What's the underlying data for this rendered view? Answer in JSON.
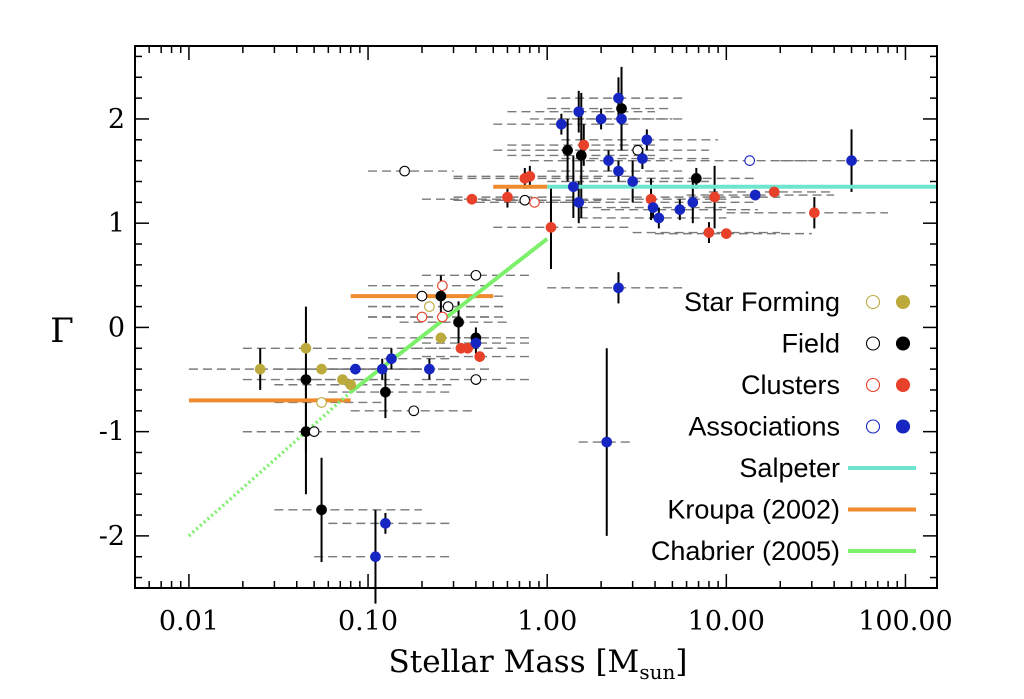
{
  "chart_data": {
    "type": "scatter",
    "xscale": "log",
    "xlim": [
      0.005,
      150
    ],
    "ylim": [
      -2.5,
      2.7
    ],
    "xlabel_main": "Stellar Mass [M",
    "xlabel_sub": "sun",
    "xlabel_end": "]",
    "ylabel": "Γ",
    "xticks": [
      {
        "value": 0.01,
        "label": "0.01"
      },
      {
        "value": 0.1,
        "label": "0.10"
      },
      {
        "value": 1,
        "label": "1.00"
      },
      {
        "value": 10,
        "label": "10.00"
      },
      {
        "value": 100,
        "label": "100.00"
      }
    ],
    "yticks": [
      {
        "value": -2,
        "label": "-2"
      },
      {
        "value": -1,
        "label": "-1"
      },
      {
        "value": 0,
        "label": "0"
      },
      {
        "value": 1,
        "label": "1"
      },
      {
        "value": 2,
        "label": "2"
      }
    ],
    "grid": false,
    "legend_position": "bottom-right",
    "colors": {
      "star_forming": "#bcab3c",
      "field": "#000000",
      "clusters": "#e8412a",
      "associations": "#1726c2",
      "salpeter": "#6ee6cf",
      "kroupa": "#f08a2e",
      "chabrier": "#7cf06a",
      "range": "#7a7a7a",
      "errorbar": "#000000"
    },
    "series": [
      {
        "name": "Star Forming",
        "key": "star_forming",
        "points": [
          {
            "x": 0.025,
            "y": -0.4,
            "xr": [
              0.01,
              0.2
            ],
            "yerr": 0.2,
            "filled": true
          },
          {
            "x": 0.045,
            "y": -0.2,
            "xr": [
              0.02,
              0.3
            ],
            "yerr": 0,
            "filled": true
          },
          {
            "x": 0.055,
            "y": -0.4,
            "xr": [
              0.03,
              0.2
            ],
            "yerr": 0,
            "filled": true
          },
          {
            "x": 0.072,
            "y": -0.5,
            "xr": [
              0.04,
              0.15
            ],
            "yerr": 0,
            "filled": true
          },
          {
            "x": 0.08,
            "y": -0.55,
            "xr": [
              0.03,
              0.3
            ],
            "yerr": 0,
            "filled": true
          },
          {
            "x": 0.255,
            "y": -0.1,
            "xr": [
              0.1,
              0.5
            ],
            "yerr": 0,
            "filled": true
          },
          {
            "x": 0.22,
            "y": 0.2,
            "xr": [
              0.1,
              0.6
            ],
            "yerr": 0,
            "filled": false
          },
          {
            "x": 0.055,
            "y": -0.72,
            "xr": [
              0.03,
              0.12
            ],
            "yerr": 0,
            "filled": false
          }
        ]
      },
      {
        "name": "Field",
        "key": "field",
        "points": [
          {
            "x": 0.045,
            "y": -0.5,
            "xr": [
              0.02,
              0.12
            ],
            "yerr": 0.7,
            "filled": true
          },
          {
            "x": 0.045,
            "y": -1.0,
            "xr": [
              0.02,
              0.12
            ],
            "yerr": 0.6,
            "filled": true
          },
          {
            "x": 0.055,
            "y": -1.75,
            "xr": [
              0.03,
              0.2
            ],
            "yerr": 0.5,
            "filled": true
          },
          {
            "x": 0.125,
            "y": -0.62,
            "xr": [
              0.06,
              0.3
            ],
            "yerr": 0.25,
            "filled": true
          },
          {
            "x": 0.255,
            "y": 0.3,
            "xr": [
              0.1,
              0.5
            ],
            "yerr": 0.2,
            "filled": true
          },
          {
            "x": 0.32,
            "y": 0.05,
            "xr": [
              0.15,
              0.6
            ],
            "yerr": 0.2,
            "filled": true
          },
          {
            "x": 0.4,
            "y": -0.1,
            "xr": [
              0.2,
              0.8
            ],
            "yerr": 0.1,
            "filled": true
          },
          {
            "x": 1.3,
            "y": 1.7,
            "xr": [
              0.5,
              3
            ],
            "yerr": 0.3,
            "filled": true
          },
          {
            "x": 1.55,
            "y": 1.65,
            "xr": [
              0.6,
              4
            ],
            "yerr": 0.6,
            "filled": true
          },
          {
            "x": 2.6,
            "y": 2.1,
            "xr": [
              1,
              5
            ],
            "yerr": 0.4,
            "filled": true
          },
          {
            "x": 6.8,
            "y": 1.43,
            "xr": [
              3,
              15
            ],
            "yerr": 0.1,
            "filled": true
          },
          {
            "x": 0.16,
            "y": 1.5,
            "xr": [
              0.1,
              0.3
            ],
            "yerr": 0,
            "filled": false
          },
          {
            "x": 0.4,
            "y": 0.5,
            "xr": [
              0.2,
              0.8
            ],
            "yerr": 0,
            "filled": false
          },
          {
            "x": 0.4,
            "y": -0.5,
            "xr": [
              0.2,
              0.8
            ],
            "yerr": 0,
            "filled": false
          },
          {
            "x": 0.05,
            "y": -1.0,
            "xr": [
              0.02,
              0.2
            ],
            "yerr": 0,
            "filled": false
          },
          {
            "x": 0.18,
            "y": -0.8,
            "xr": [
              0.08,
              0.4
            ],
            "yerr": 0,
            "filled": false
          },
          {
            "x": 0.2,
            "y": 0.3,
            "xr": [
              0.1,
              0.6
            ],
            "yerr": 0,
            "filled": false
          },
          {
            "x": 0.28,
            "y": 0.2,
            "xr": [
              0.1,
              0.6
            ],
            "yerr": 0,
            "filled": false
          },
          {
            "x": 0.75,
            "y": 1.22,
            "xr": [
              0.3,
              2
            ],
            "yerr": 0,
            "filled": false
          },
          {
            "x": 3.2,
            "y": 1.7,
            "xr": [
              1,
              8
            ],
            "yerr": 0,
            "filled": false
          }
        ]
      },
      {
        "name": "Clusters",
        "key": "clusters",
        "points": [
          {
            "x": 0.38,
            "y": 1.23,
            "xr": [
              0.2,
              0.8
            ],
            "yerr": 0,
            "filled": true
          },
          {
            "x": 0.6,
            "y": 1.25,
            "xr": [
              0.3,
              1.5
            ],
            "yerr": 0.1,
            "filled": true
          },
          {
            "x": 0.75,
            "y": 1.43,
            "xr": [
              0.3,
              2
            ],
            "yerr": 0.1,
            "filled": true
          },
          {
            "x": 0.8,
            "y": 1.45,
            "xr": [
              0.3,
              3
            ],
            "yerr": 0.1,
            "filled": true
          },
          {
            "x": 1.05,
            "y": 0.96,
            "xr": [
              0.5,
              3
            ],
            "yerr": 0.4,
            "filled": true
          },
          {
            "x": 1.6,
            "y": 1.75,
            "xr": [
              0.6,
              4
            ],
            "yerr": 0.2,
            "filled": true
          },
          {
            "x": 3.8,
            "y": 1.23,
            "xr": [
              1.5,
              10
            ],
            "yerr": 0.2,
            "filled": true
          },
          {
            "x": 8.0,
            "y": 0.91,
            "xr": [
              3,
              20
            ],
            "yerr": 0.1,
            "filled": true
          },
          {
            "x": 8.6,
            "y": 1.25,
            "xr": [
              3,
              20
            ],
            "yerr": 0.3,
            "filled": true
          },
          {
            "x": 10.0,
            "y": 0.9,
            "xr": [
              4,
              30
            ],
            "yerr": 0,
            "filled": true
          },
          {
            "x": 18.5,
            "y": 1.3,
            "xr": [
              8,
              40
            ],
            "yerr": 0.05,
            "filled": true
          },
          {
            "x": 31.0,
            "y": 1.1,
            "xr": [
              10,
              80
            ],
            "yerr": 0.15,
            "filled": true
          },
          {
            "x": 0.33,
            "y": -0.2,
            "xr": [
              0.15,
              0.6
            ],
            "yerr": 0,
            "filled": true
          },
          {
            "x": 0.36,
            "y": -0.2,
            "xr": [
              0.15,
              0.6
            ],
            "yerr": 0,
            "filled": true
          },
          {
            "x": 0.42,
            "y": -0.28,
            "xr": [
              0.2,
              0.8
            ],
            "yerr": 0,
            "filled": true
          },
          {
            "x": 0.26,
            "y": 0.1,
            "xr": [
              0.1,
              0.6
            ],
            "yerr": 0,
            "filled": false
          },
          {
            "x": 0.2,
            "y": 0.1,
            "xr": [
              0.1,
              0.5
            ],
            "yerr": 0,
            "filled": false
          },
          {
            "x": 0.26,
            "y": 0.4,
            "xr": [
              0.1,
              0.6
            ],
            "yerr": 0,
            "filled": false
          },
          {
            "x": 0.85,
            "y": 1.2,
            "xr": [
              0.4,
              2
            ],
            "yerr": 0,
            "filled": false
          }
        ]
      },
      {
        "name": "Associations",
        "key": "associations",
        "points": [
          {
            "x": 0.085,
            "y": -0.4,
            "xr": [
              0.04,
              0.2
            ],
            "yerr": 0,
            "filled": true
          },
          {
            "x": 0.12,
            "y": -0.4,
            "xr": [
              0.06,
              0.3
            ],
            "yerr": 0.1,
            "filled": true
          },
          {
            "x": 0.135,
            "y": -0.3,
            "xr": [
              0.06,
              0.3
            ],
            "yerr": 0.1,
            "filled": true
          },
          {
            "x": 0.22,
            "y": -0.4,
            "xr": [
              0.1,
              0.5
            ],
            "yerr": 0.1,
            "filled": true
          },
          {
            "x": 0.4,
            "y": -0.15,
            "xr": [
              0.2,
              0.8
            ],
            "yerr": 0.1,
            "filled": true
          },
          {
            "x": 0.125,
            "y": -1.88,
            "xr": [
              0.06,
              0.3
            ],
            "yerr": 0.1,
            "filled": true
          },
          {
            "x": 0.11,
            "y": -2.2,
            "xr": [
              0.05,
              0.3
            ],
            "yerr": 0.45,
            "filled": true
          },
          {
            "x": 1.2,
            "y": 1.95,
            "xr": [
              0.5,
              3
            ],
            "yerr": 0.1,
            "filled": true
          },
          {
            "x": 1.4,
            "y": 1.35,
            "xr": [
              0.5,
              4
            ],
            "yerr": 0.3,
            "filled": true
          },
          {
            "x": 1.5,
            "y": 2.07,
            "xr": [
              0.6,
              4
            ],
            "yerr": 0.2,
            "filled": true
          },
          {
            "x": 1.5,
            "y": 1.2,
            "xr": [
              0.6,
              4
            ],
            "yerr": 0.2,
            "filled": true
          },
          {
            "x": 2.0,
            "y": 2.0,
            "xr": [
              0.8,
              5
            ],
            "yerr": 0.1,
            "filled": true
          },
          {
            "x": 2.2,
            "y": 1.6,
            "xr": [
              0.8,
              5
            ],
            "yerr": 0.1,
            "filled": true
          },
          {
            "x": 2.5,
            "y": 2.2,
            "xr": [
              1,
              6
            ],
            "yerr": 0.2,
            "filled": true
          },
          {
            "x": 2.6,
            "y": 2.0,
            "xr": [
              1,
              6
            ],
            "yerr": 0.3,
            "filled": true
          },
          {
            "x": 2.5,
            "y": 1.5,
            "xr": [
              1,
              6
            ],
            "yerr": 0.1,
            "filled": true
          },
          {
            "x": 3.0,
            "y": 1.4,
            "xr": [
              1,
              8
            ],
            "yerr": 0.2,
            "filled": true
          },
          {
            "x": 3.4,
            "y": 1.62,
            "xr": [
              1.2,
              8
            ],
            "yerr": 0.1,
            "filled": true
          },
          {
            "x": 3.6,
            "y": 1.8,
            "xr": [
              1.2,
              9
            ],
            "yerr": 0.1,
            "filled": true
          },
          {
            "x": 3.9,
            "y": 1.15,
            "xr": [
              1.5,
              10
            ],
            "yerr": 0.1,
            "filled": true
          },
          {
            "x": 4.2,
            "y": 1.05,
            "xr": [
              1.5,
              10
            ],
            "yerr": 0.1,
            "filled": true
          },
          {
            "x": 5.5,
            "y": 1.13,
            "xr": [
              2,
              15
            ],
            "yerr": 0.1,
            "filled": true
          },
          {
            "x": 6.5,
            "y": 1.2,
            "xr": [
              2.5,
              15
            ],
            "yerr": 0.2,
            "filled": true
          },
          {
            "x": 14.5,
            "y": 1.27,
            "xr": [
              6,
              40
            ],
            "yerr": 0.05,
            "filled": true
          },
          {
            "x": 50.0,
            "y": 1.6,
            "xr": [
              20,
              150
            ],
            "yerr": 0.3,
            "filled": true
          },
          {
            "x": 2.5,
            "y": 0.38,
            "xr": [
              1,
              6
            ],
            "yerr": 0.15,
            "filled": true
          },
          {
            "x": 2.15,
            "y": -1.1,
            "xr": [
              1.5,
              3
            ],
            "yerr": 0.9,
            "filled": true
          },
          {
            "x": 13.5,
            "y": 1.6,
            "xr": [
              6,
              30
            ],
            "yerr": 0,
            "filled": false
          }
        ]
      }
    ],
    "lines": [
      {
        "name": "Salpeter",
        "key": "salpeter",
        "style": "solid",
        "segments": [
          {
            "x": [
              1,
              150
            ],
            "y": [
              1.35,
              1.35
            ]
          }
        ]
      },
      {
        "name": "Kroupa (2002)",
        "key": "kroupa",
        "style": "solid",
        "segments": [
          {
            "x": [
              0.01,
              0.08
            ],
            "y": [
              -0.7,
              -0.7
            ]
          },
          {
            "x": [
              0.08,
              0.5
            ],
            "y": [
              0.3,
              0.3
            ]
          },
          {
            "x": [
              0.5,
              1.0
            ],
            "y": [
              1.35,
              1.35
            ]
          }
        ]
      },
      {
        "name": "Chabrier (2005)",
        "key": "chabrier",
        "style": "dotted-then-solid",
        "segments": [
          {
            "x": [
              0.01,
              0.08
            ],
            "y": [
              -2.0,
              -0.62
            ],
            "dotted": true
          },
          {
            "x": [
              0.08,
              1.0
            ],
            "y": [
              -0.62,
              0.85
            ],
            "dotted": false
          }
        ]
      }
    ],
    "legend": [
      {
        "label": "Star Forming",
        "key": "star_forming",
        "kind": "marker"
      },
      {
        "label": "Field",
        "key": "field",
        "kind": "marker"
      },
      {
        "label": "Clusters",
        "key": "clusters",
        "kind": "marker"
      },
      {
        "label": "Associations",
        "key": "associations",
        "kind": "marker"
      },
      {
        "label": "Salpeter",
        "key": "salpeter",
        "kind": "line"
      },
      {
        "label": "Kroupa (2002)",
        "key": "kroupa",
        "kind": "line"
      },
      {
        "label": "Chabrier (2005)",
        "key": "chabrier",
        "kind": "line"
      }
    ]
  }
}
